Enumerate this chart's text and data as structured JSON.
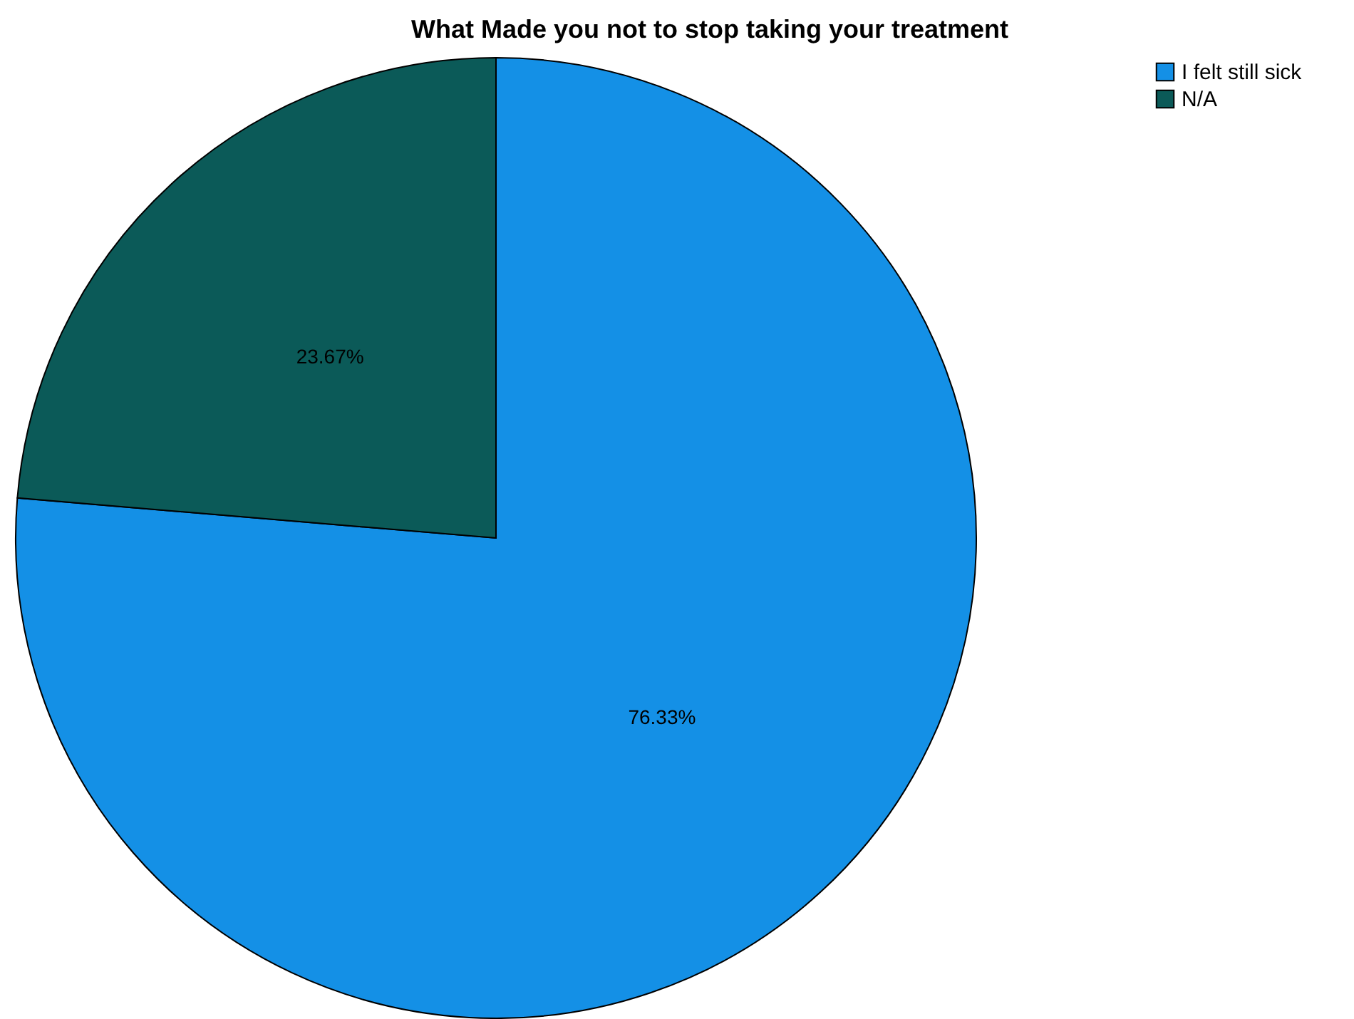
{
  "chart_data": {
    "type": "pie",
    "title": "What Made you not to stop taking your treatment",
    "categories": [
      "I felt still sick",
      "N/A"
    ],
    "values": [
      76.33,
      23.67
    ],
    "colors": [
      "#1490e6",
      "#0b5a58"
    ],
    "value_labels": [
      "76.33%",
      "23.67%"
    ],
    "legend": "top right"
  }
}
